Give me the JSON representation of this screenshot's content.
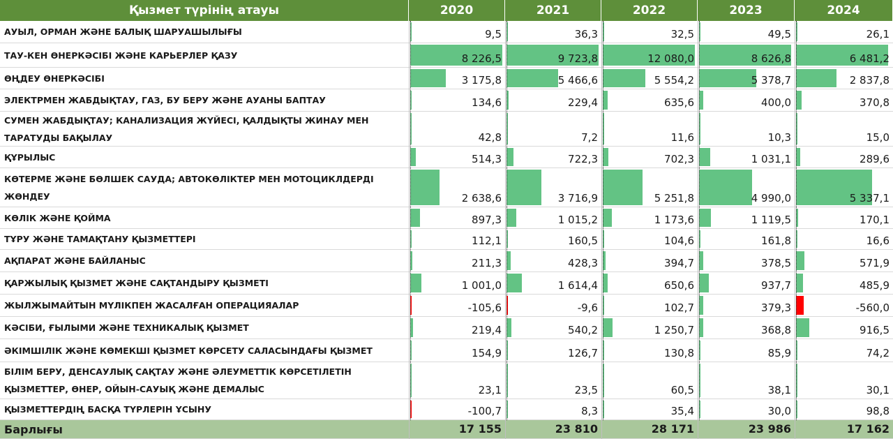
{
  "header": {
    "name_col": "Қызмет түрінің атауы",
    "years": [
      "2020",
      "2021",
      "2022",
      "2023",
      "2024"
    ]
  },
  "colors": {
    "header_bg": "#5e8f3a",
    "positive_bar": "#63c384",
    "negative_bar": "#ff0000",
    "total_bg": "#a9c79b"
  },
  "chart_data": {
    "type": "table",
    "columns": [
      "2020",
      "2021",
      "2022",
      "2023",
      "2024"
    ],
    "rows": [
      {
        "label": "АУЫЛ, ОРМАН ЖӘНЕ БАЛЫҚ ШАРУАШЫЛЫҒЫ",
        "values": [
          9.5,
          36.3,
          32.5,
          49.5,
          26.1
        ],
        "display": [
          "9,5",
          "36,3",
          "32,5",
          "49,5",
          "26,1"
        ]
      },
      {
        "label": "ТАУ-КЕН ӨНЕРКӘСІБІ ЖӘНЕ КАРЬЕРЛЕР ҚАЗУ",
        "values": [
          8226.5,
          9723.8,
          12080.0,
          8626.8,
          6481.2
        ],
        "display": [
          "8 226,5",
          "9 723,8",
          "12 080,0",
          "8 626,8",
          "6 481,2"
        ]
      },
      {
        "label": "ӨҢДЕУ ӨНЕРКӘСІБІ",
        "values": [
          3175.8,
          5466.6,
          5554.2,
          5378.7,
          2837.8
        ],
        "display": [
          "3 175,8",
          "5 466,6",
          "5 554,2",
          "5 378,7",
          "2 837,8"
        ]
      },
      {
        "label": "ЭЛЕКТРМЕН ЖАБДЫҚТАУ, ГАЗ, БУ БЕРУ ЖӘНЕ АУАНЫ БАПТАУ",
        "values": [
          134.6,
          229.4,
          635.6,
          400.0,
          370.8
        ],
        "display": [
          "134,6",
          "229,4",
          "635,6",
          "400,0",
          "370,8"
        ]
      },
      {
        "label": "СУМЕН ЖАБДЫҚТАУ; КАНАЛИЗАЦИЯ ЖҮЙЕСІ, ҚАЛДЫҚТЫ ЖИНАУ МЕН ТАРАТУДЫ БАҚЫЛАУ",
        "values": [
          42.8,
          7.2,
          11.6,
          10.3,
          15.0
        ],
        "display": [
          "42,8",
          "7,2",
          "11,6",
          "10,3",
          "15,0"
        ]
      },
      {
        "label": "ҚҰРЫЛЫС",
        "values": [
          514.3,
          722.3,
          702.3,
          1031.1,
          289.6
        ],
        "display": [
          "514,3",
          "722,3",
          "702,3",
          "1 031,1",
          "289,6"
        ]
      },
      {
        "label": "КӨТЕРМЕ ЖӘНЕ БӨЛШЕК САУДА; АВТОКӨЛІКТЕР МЕН МОТОЦИКЛДЕРДІ ЖӨНДЕУ",
        "values": [
          2638.6,
          3716.9,
          5251.8,
          4990.0,
          5337.1
        ],
        "display": [
          "2 638,6",
          "3 716,9",
          "5 251,8",
          "4 990,0",
          "5 337,1"
        ]
      },
      {
        "label": "КӨЛІК ЖӘНЕ ҚОЙМА",
        "values": [
          897.3,
          1015.2,
          1173.6,
          1119.5,
          170.1
        ],
        "display": [
          "897,3",
          "1 015,2",
          "1 173,6",
          "1 119,5",
          "170,1"
        ]
      },
      {
        "label": "ТҰРУ ЖӘНЕ ТАМАҚТАНУ ҚЫЗМЕТТЕРІ",
        "values": [
          112.1,
          160.5,
          104.6,
          161.8,
          16.6
        ],
        "display": [
          "112,1",
          "160,5",
          "104,6",
          "161,8",
          "16,6"
        ]
      },
      {
        "label": "АҚПАРАТ ЖӘНЕ БАЙЛАНЫС",
        "values": [
          211.3,
          428.3,
          394.7,
          378.5,
          571.9
        ],
        "display": [
          "211,3",
          "428,3",
          "394,7",
          "378,5",
          "571,9"
        ]
      },
      {
        "label": "ҚАРЖЫЛЫҚ ҚЫЗМЕТ ЖӘНЕ САҚТАНДЫРУ ҚЫЗМЕТІ",
        "values": [
          1001.0,
          1614.4,
          650.6,
          937.7,
          485.9
        ],
        "display": [
          "1 001,0",
          "1 614,4",
          "650,6",
          "937,7",
          "485,9"
        ]
      },
      {
        "label": "ЖЫЛЖЫМАЙТЫН МҮЛІКПЕН ЖАСАЛҒАН ОПЕРАЦИЯАЛАР",
        "values": [
          -105.6,
          -9.6,
          102.7,
          379.3,
          -560.0
        ],
        "display": [
          "-105,6",
          "-9,6",
          "102,7",
          "379,3",
          "-560,0"
        ]
      },
      {
        "label": "КӘСІБИ, ҒЫЛЫМИ ЖӘНЕ ТЕХНИКАЛЫҚ ҚЫЗМЕТ",
        "values": [
          219.4,
          540.2,
          1250.7,
          368.8,
          916.5
        ],
        "display": [
          "219,4",
          "540,2",
          "1 250,7",
          "368,8",
          "916,5"
        ]
      },
      {
        "label": "ӘКІМШІЛІК ЖӘНЕ КӨМЕКШІ ҚЫЗМЕТ КӨРСЕТУ САЛАСЫНДАҒЫ ҚЫЗМЕТ",
        "values": [
          154.9,
          126.7,
          130.8,
          85.9,
          74.2
        ],
        "display": [
          "154,9",
          "126,7",
          "130,8",
          "85,9",
          "74,2"
        ]
      },
      {
        "label": "БІЛІМ БЕРУ, ДЕНСАУЛЫҚ САҚТАУ ЖӘНЕ ӘЛЕУМЕТТІК КӨРСЕТІЛЕТІН ҚЫЗМЕТТЕР, ӨНЕР, ОЙЫН-САУЫҚ ЖӘНЕ ДЕМАЛЫС",
        "values": [
          23.1,
          23.5,
          60.5,
          38.1,
          30.1
        ],
        "display": [
          "23,1",
          "23,5",
          "60,5",
          "38,1",
          "30,1"
        ]
      },
      {
        "label": "ҚЫЗМЕТТЕРДІҢ БАСҚА ТҮРЛЕРІН ҰСЫНУ",
        "values": [
          -100.7,
          8.3,
          35.4,
          30.0,
          98.8
        ],
        "display": [
          "-100,7",
          "8,3",
          "35,4",
          "30,0",
          "98,8"
        ]
      }
    ],
    "total": {
      "label": "Барлығы",
      "values": [
        17155,
        23810,
        28171,
        23986,
        17162
      ],
      "display": [
        "17 155",
        "23 810",
        "28 171",
        "23 986",
        "17 162"
      ]
    }
  }
}
